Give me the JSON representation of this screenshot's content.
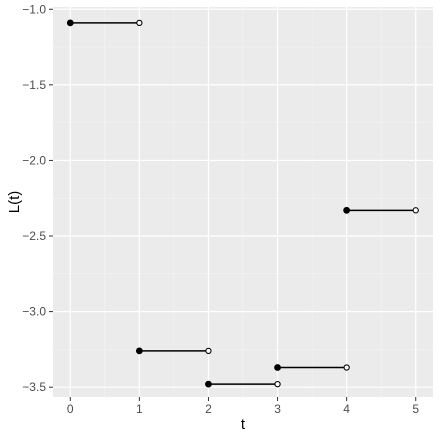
{
  "chart_data": {
    "type": "step",
    "title": "",
    "xlabel": "t",
    "ylabel": "L(t)",
    "xlim": [
      -0.25,
      5.25
    ],
    "ylim": [
      -3.565,
      -0.985
    ],
    "x_ticks": [
      0,
      1,
      2,
      3,
      4,
      5
    ],
    "x_tick_labels": [
      "0",
      "1",
      "2",
      "3",
      "4",
      "5"
    ],
    "y_ticks": [
      -3.5,
      -3.0,
      -2.5,
      -2.0,
      -1.5,
      -1.0
    ],
    "y_tick_labels": [
      "−3.5",
      "−3.0",
      "−2.5",
      "−2.0",
      "−1.5",
      "−1.0"
    ],
    "grid": true,
    "legend": "none",
    "segments": [
      {
        "x_start": 0,
        "x_end": 1,
        "y": -1.09
      },
      {
        "x_start": 1,
        "x_end": 2,
        "y": -3.26
      },
      {
        "x_start": 2,
        "x_end": 3,
        "y": -3.48
      },
      {
        "x_start": 3,
        "x_end": 4,
        "y": -3.37
      },
      {
        "x_start": 4,
        "x_end": 5,
        "y": -2.33
      }
    ],
    "colors": {
      "panel_background": "#ebebeb",
      "grid_major": "#ffffff",
      "grid_minor": "#f4f4f4",
      "line": "#000000",
      "closed_point": "#000000",
      "open_point_fill": "#ffffff",
      "axis_ticks": "#333333"
    }
  }
}
